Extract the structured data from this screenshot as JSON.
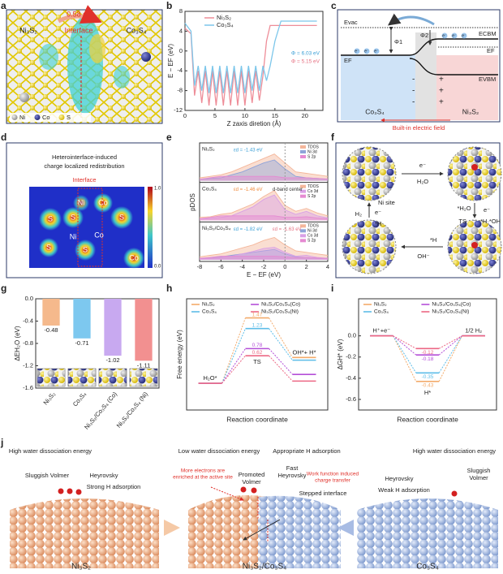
{
  "panel_labels": [
    "a",
    "b",
    "c",
    "d",
    "e",
    "f",
    "g",
    "h",
    "i",
    "j"
  ],
  "panel_a": {
    "charge": "0.58 e⁻",
    "interface": "Interface",
    "left": "Ni₃S₂",
    "right": "Co₃S₄",
    "legend": [
      "Ni",
      "Co",
      "S"
    ]
  },
  "panel_c": {
    "e_vac": "Evac",
    "phi1": "Φ1",
    "phi2": "Φ2",
    "e_cbm": "ECBM",
    "e_f_left": "EF",
    "e_f_right": "EF",
    "e_vbm": "EVBM",
    "electron": "e⁻",
    "minus": "-",
    "plus": "+",
    "left": "Co₃S₄",
    "right": "Ni₃S₂",
    "field": "Built-in electric field"
  },
  "panel_d": {
    "title": [
      "Heterointerface-induced",
      "charge localized redistribution"
    ],
    "interface": "Interface",
    "atoms": [
      "Ni",
      "Co",
      "S",
      "S",
      "S",
      "Ni",
      "Co",
      "S",
      "S",
      "Co"
    ],
    "colorbar": [
      "1.0",
      "0.0"
    ]
  },
  "panel_f": {
    "water": "H₂O",
    "adsorbed_water": "*H₂O",
    "electron": "e⁻",
    "ts": "TS",
    "split": "*H·*OH",
    "hydroxide": "OH⁻",
    "adsorbed_h": "*H",
    "hydrogen": "H₂",
    "site": "Ni site"
  },
  "panel_j": {
    "left": {
      "energy": "High water dissociation energy",
      "volmer": "Sluggish Volmer",
      "heyrovsky": "Heyrovsky",
      "adsorption": "Strong H adsorption",
      "name": "Ni₃S₂"
    },
    "middle": {
      "energy": "Low water dissociation energy",
      "adsorption": "Appropriate H adsorption",
      "electrons": [
        "More electrons are",
        "enriched at the active site"
      ],
      "volmer": [
        "Promoted",
        "Volmer"
      ],
      "heyrovsky": [
        "Fast",
        "Heyrovsky"
      ],
      "transfer": [
        "Work function induced",
        "charge transfer"
      ],
      "interface": "Stepped interface",
      "name": "Ni₃S₂/Co₃S₄"
    },
    "right": {
      "energy": "High water dissociation energy",
      "heyrovsky": "Heyrovsky",
      "volmer": [
        "Sluggish",
        "Volmer"
      ],
      "adsorption": "Weak H adsorption",
      "name": "Co₃S₄"
    }
  },
  "chart_data": [
    {
      "type": "line",
      "xlabel": "Z zaxis diretion (Å)",
      "ylabel": "E − EF (eV)",
      "xlim": [
        0,
        23
      ],
      "xticks": [
        0,
        5,
        10,
        15,
        20
      ],
      "ylim": [
        -12,
        8
      ],
      "yticks": [
        -12,
        -8,
        -4,
        0,
        4,
        8
      ],
      "x": [
        0,
        1,
        1.6,
        2.2,
        2.8,
        3.4,
        4.0,
        4.6,
        5.2,
        5.8,
        6.4,
        7.0,
        7.6,
        8.2,
        8.8,
        9.4,
        10.0,
        10.6,
        11.2,
        11.8,
        12.4,
        13.0,
        13.6,
        14.2,
        15.0,
        16.0,
        18.0,
        20.0,
        22.0
      ],
      "series": [
        {
          "name": "Ni₃S₂",
          "color": "#ee8d98",
          "values": [
            4.6,
            3.5,
            -9,
            -4,
            -10.5,
            -4,
            -11,
            -4,
            -11,
            -4,
            -11,
            -4,
            -11,
            -4,
            -11,
            -4,
            -11,
            -4,
            -10.5,
            -4,
            -10,
            -5,
            2,
            5.15,
            5.15,
            5.15,
            5.15,
            5.15,
            5.15
          ]
        },
        {
          "name": "Co₃S₄",
          "color": "#7cc6ea",
          "values": [
            5.6,
            4,
            -7,
            -3,
            -8,
            -3,
            -8.5,
            -3,
            -8.5,
            -3,
            -8.5,
            -3,
            -8.5,
            -3,
            -8.5,
            -3,
            -8.5,
            -3,
            -8,
            -3,
            -8,
            -3,
            -6,
            -3,
            2,
            6.03,
            6.03,
            6.03,
            6.03
          ]
        }
      ],
      "annotations": [
        {
          "text": "Φ = 6.03 eV",
          "color": "#3a9fd6"
        },
        {
          "text": "Φ = 5.15 eV",
          "color": "#e66f80"
        }
      ]
    },
    {
      "type": "area",
      "xlabel": "E − EF (eV)",
      "ylabel": "pDOS",
      "xlim": [
        -8,
        4
      ],
      "xticks": [
        -8,
        -6,
        -4,
        -2,
        0,
        2,
        4
      ],
      "ylim": [
        0,
        1
      ],
      "x": [
        -8,
        -7,
        -6,
        -5,
        -4,
        -3,
        -2,
        -1,
        0,
        1,
        2,
        3,
        4
      ],
      "panels": [
        {
          "name": "Ni₃S₂",
          "annotations": [
            {
              "text": "εd = -1.43 eV",
              "color": "#3a9fd6"
            }
          ],
          "series": [
            {
              "name": "TDOS",
              "color": "#f4b69a",
              "values": [
                0.1,
                0.15,
                0.2,
                0.3,
                0.45,
                0.6,
                0.75,
                0.9,
                0.6,
                0.3,
                0.25,
                0.2,
                0.15
              ]
            },
            {
              "name": "Ni 3d",
              "color": "#8fa3d9",
              "values": [
                0.05,
                0.08,
                0.1,
                0.2,
                0.3,
                0.45,
                0.6,
                0.7,
                0.4,
                0.15,
                0.1,
                0.08,
                0.05
              ]
            },
            {
              "name": "S 2p",
              "color": "#e58ad2",
              "values": [
                0.05,
                0.1,
                0.15,
                0.15,
                0.15,
                0.15,
                0.15,
                0.15,
                0.1,
                0.1,
                0.1,
                0.08,
                0.06
              ]
            }
          ]
        },
        {
          "name": "Co₃S₄",
          "annotations": [
            {
              "text": "εd = -1.46 eV",
              "color": "#f08a3c"
            },
            {
              "text": "d-band center",
              "color": "#333333"
            }
          ],
          "series": [
            {
              "name": "TDOS",
              "color": "#f4b69a",
              "values": [
                0.1,
                0.12,
                0.2,
                0.25,
                0.4,
                0.55,
                0.8,
                1.0,
                0.5,
                0.3,
                0.4,
                0.25,
                0.15
              ]
            },
            {
              "name": "Co 3d",
              "color": "#d9a0e6",
              "values": [
                0.05,
                0.06,
                0.1,
                0.15,
                0.3,
                0.45,
                0.7,
                0.85,
                0.35,
                0.2,
                0.3,
                0.15,
                0.08
              ]
            },
            {
              "name": "S 2p",
              "color": "#e58ad2",
              "values": [
                0.05,
                0.1,
                0.15,
                0.15,
                0.15,
                0.15,
                0.15,
                0.15,
                0.1,
                0.1,
                0.12,
                0.08,
                0.05
              ]
            }
          ]
        },
        {
          "name": "Ni₃S₂/Co₃S₄",
          "annotations": [
            {
              "text": "εd = -1.82 eV",
              "color": "#3a9fd6"
            },
            {
              "text": "εd = -1.63 eV",
              "color": "#e66f80"
            }
          ],
          "series": [
            {
              "name": "TDOS",
              "color": "#f4b69a",
              "values": [
                0.1,
                0.15,
                0.2,
                0.3,
                0.4,
                0.5,
                0.65,
                0.75,
                0.5,
                0.3,
                0.25,
                0.2,
                0.15
              ]
            },
            {
              "name": "Ni 3d",
              "color": "#8fa3d9",
              "values": [
                0.05,
                0.06,
                0.1,
                0.15,
                0.2,
                0.25,
                0.3,
                0.35,
                0.2,
                0.1,
                0.08,
                0.06,
                0.05
              ]
            },
            {
              "name": "Co 3d",
              "color": "#d9a0e6",
              "values": [
                0.03,
                0.05,
                0.08,
                0.12,
                0.2,
                0.28,
                0.38,
                0.42,
                0.25,
                0.12,
                0.15,
                0.08,
                0.05
              ]
            },
            {
              "name": "S 2p",
              "color": "#e58ad2",
              "values": [
                0.05,
                0.08,
                0.12,
                0.12,
                0.12,
                0.12,
                0.12,
                0.12,
                0.1,
                0.08,
                0.08,
                0.06,
                0.05
              ]
            }
          ]
        }
      ]
    },
    {
      "type": "bar",
      "ylabel": "ΔEH₂O (eV)",
      "categories": [
        "Ni₃S₂",
        "Co₃S₄",
        "Ni₃S₂/Co₃S₄ (Co)",
        "Ni₃S₂/Co₃S₄ (Ni)"
      ],
      "values": [
        -0.48,
        -0.71,
        -1.02,
        -1.11
      ],
      "colors": [
        "#f5b98c",
        "#7dc8ef",
        "#c8a9f0",
        "#f29090"
      ],
      "ylim": [
        -1.6,
        0
      ],
      "yticks": [
        -1.6,
        -1.2,
        -0.8,
        -0.4,
        {
          "value": 0,
          "label": "0.0"
        }
      ]
    },
    {
      "type": "step",
      "ylabel": "Free energy (eV)",
      "xlabel": "Reaction coordinate",
      "categories": [
        "H₂O*",
        "TS",
        "OH*+ H*"
      ],
      "ylim": [
        -0.6,
        1.9
      ],
      "series": [
        {
          "name": "Ni₃S₂",
          "color": "#f3ab6b",
          "values": [
            0,
            1.47,
            0.58
          ]
        },
        {
          "name": "Co₃S₄",
          "color": "#5dbde8",
          "values": [
            0,
            1.23,
            0.52
          ]
        },
        {
          "name": "Ni₃S₂/Co₃S₄(Co)",
          "color": "#b44fd8",
          "values": [
            0,
            0.78,
            0.2
          ]
        },
        {
          "name": "Ni₃S₂/Co₃S₄(Ni)",
          "color": "#ec6784",
          "values": [
            0,
            0.62,
            0.05
          ]
        }
      ]
    },
    {
      "type": "step",
      "ylabel": "ΔGH* (eV)",
      "xlabel": "Reaction coordinate",
      "categories": [
        "H⁺+e⁻",
        "H*",
        "1/2 H₂"
      ],
      "ylim": [
        -0.7,
        0.35
      ],
      "yticks": [
        {
          "value": 0,
          "label": "0.0"
        },
        -0.2,
        -0.4,
        -0.6
      ],
      "series": [
        {
          "name": "Ni₃S₂",
          "color": "#f3ab6b",
          "values": [
            0,
            -0.43,
            0
          ]
        },
        {
          "name": "Co₃S₄",
          "color": "#5dbde8",
          "values": [
            0,
            -0.35,
            0
          ]
        },
        {
          "name": "Ni₃S₂/Co₃S₄(Co)",
          "color": "#b44fd8",
          "values": [
            0,
            -0.18,
            0
          ]
        },
        {
          "name": "Ni₃S₂/Co₃S₄(Ni)",
          "color": "#ec6784",
          "values": [
            0,
            -0.12,
            0
          ]
        }
      ]
    }
  ]
}
